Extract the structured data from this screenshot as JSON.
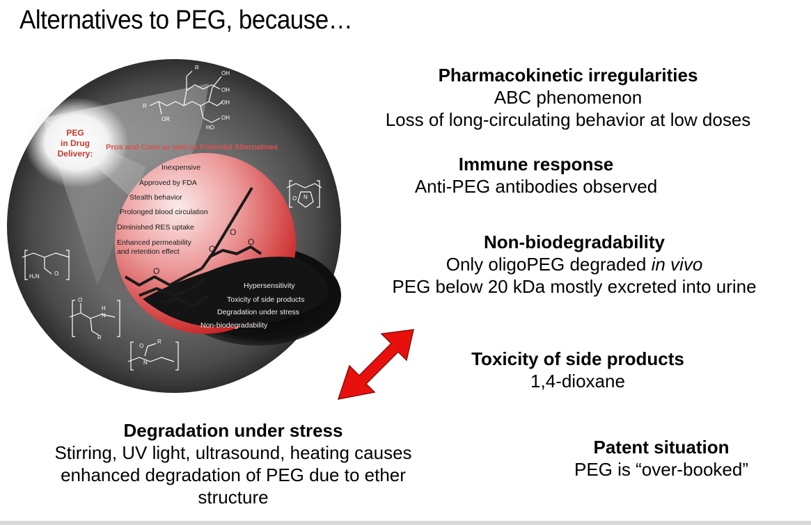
{
  "title": "Alternatives to PEG, because…",
  "figure": {
    "badge": [
      "PEG",
      "in Drug",
      "Delivery:"
    ],
    "ring_title": "Pros and Cons as well as Potential Alternatives",
    "pros": [
      "Inexpensive",
      "Approved by FDA",
      "Stealth behavior",
      "Prolonged blood circulation",
      "Diminished RES uptake",
      "Enhanced permeability",
      "and retention effect"
    ],
    "cons": [
      "Hypersensitivity",
      "Toxicity of side products",
      "Degradation under stress",
      "Non-biodegradability"
    ],
    "chem_labels": {
      "o": "O",
      "r": "R",
      "oh": "OH",
      "or": "OR",
      "ho": "HO",
      "n": "N",
      "h": "H",
      "h2n": "H₂N"
    }
  },
  "sections": {
    "pk": {
      "heading": "Pharmacokinetic irregularities",
      "lines": [
        "ABC phenomenon",
        "Loss of long-circulating behavior at low doses"
      ]
    },
    "immune": {
      "heading": "Immune response",
      "lines": [
        "Anti-PEG antibodies observed"
      ]
    },
    "nonbio": {
      "heading": "Non-biodegradability",
      "line1_pre": "Only oligoPEG degraded ",
      "line1_em": "in vivo",
      "line2": "PEG below 20 kDa mostly excreted into urine"
    },
    "tox": {
      "heading": "Toxicity of side products",
      "lines": [
        "1,4-dioxane"
      ]
    },
    "stress": {
      "heading": "Degradation under stress",
      "lines": [
        "Stirring, UV light, ultrasound, heating causes",
        "enhanced degradation of PEG due to ether",
        "structure"
      ]
    },
    "patent": {
      "heading": "Patent situation",
      "lines": [
        "PEG is “over-booked”"
      ]
    }
  },
  "colors": {
    "arrow": "#e8100d",
    "ring": "#4d4d4d",
    "pro_circle": "#d63030",
    "ring_title": "#d9534f"
  }
}
